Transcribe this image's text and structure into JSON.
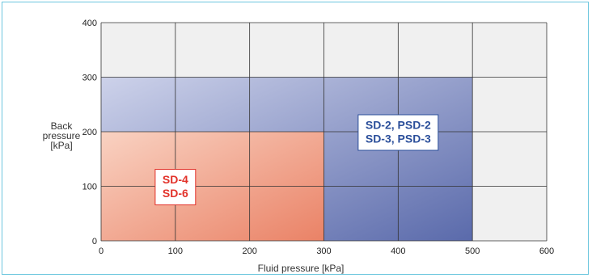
{
  "chart_data": {
    "type": "area",
    "xlabel": "Fluid pressure [kPa]",
    "ylabel": [
      "Back",
      "pressure",
      "[kPa]"
    ],
    "xlim": [
      0,
      600
    ],
    "ylim": [
      0,
      400
    ],
    "xticks": [
      0,
      100,
      200,
      300,
      400,
      500,
      600
    ],
    "yticks": [
      0,
      100,
      200,
      300,
      400
    ],
    "grid": true,
    "regions": [
      {
        "name": "SD-2, PSD-2 / SD-3, PSD-3",
        "labels": [
          "SD-2, PSD-2",
          "SD-3, PSD-3"
        ],
        "x_max": 500,
        "y_max": 300,
        "label_at": [
          400,
          200
        ],
        "fill_from": "#cdd2ea",
        "fill_to": "#5a6aab",
        "text_color": "#2a4e9a"
      },
      {
        "name": "SD-4 / SD-6",
        "labels": [
          "SD-4",
          "SD-6"
        ],
        "x_max": 300,
        "y_max": 200,
        "label_at": [
          100,
          100
        ],
        "fill_from": "#f9d2c2",
        "fill_to": "#ea8266",
        "text_color": "#e2322a"
      }
    ],
    "colors": {
      "background": "#f0f0f0",
      "grid": "#333333",
      "frame": "#6cc6de"
    }
  }
}
